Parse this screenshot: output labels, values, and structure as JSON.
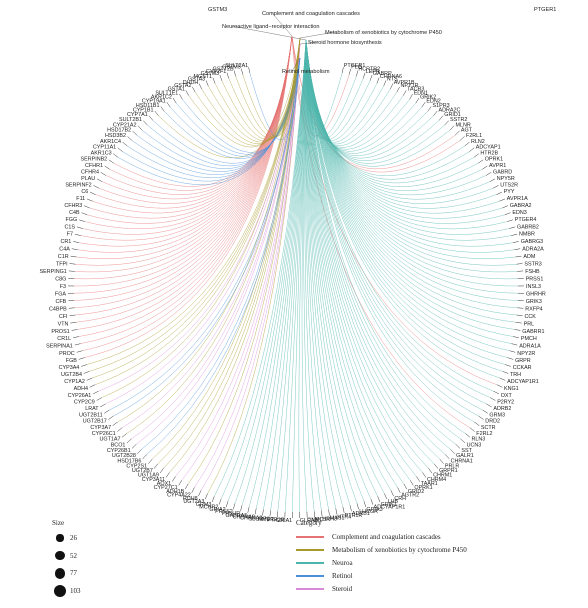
{
  "size_legend": {
    "title": "Size",
    "items": [
      {
        "label": "26",
        "value": 26
      },
      {
        "label": "52",
        "value": 52
      },
      {
        "label": "77",
        "value": 77
      },
      {
        "label": "103",
        "value": 103
      }
    ]
  },
  "category_legend": {
    "title": "Category",
    "items": [
      {
        "label": "Complement and coagulation cascades",
        "color": "#e57373"
      },
      {
        "label": "Metabolism of xenobiotics by cytochrome P450",
        "color": "#a89a2a"
      },
      {
        "label": "Neuroa",
        "color": "#4db6ac"
      },
      {
        "label": "Retinol",
        "color": "#4a90d9"
      },
      {
        "label": "Steroid",
        "color": "#d98ad9"
      }
    ]
  },
  "pathways": [
    {
      "label": "Complement and coagulation cascades",
      "color": "#e57373"
    },
    {
      "label": "Metabolism of xenobiotics by cytochrome P450",
      "color": "#a89a2a"
    },
    {
      "label": "Neuroactive ligand−receptor interaction",
      "color": "#4db6ac"
    },
    {
      "label": "Steroid hormone biosynthesis",
      "color": "#d98ad9"
    },
    {
      "label": "Retinol metabolism",
      "color": "#4a90d9"
    }
  ],
  "genes": [
    {
      "name": "PTGER1",
      "cat": 2
    },
    {
      "name": "PLG",
      "cat": 0
    },
    {
      "name": "HCRTR2",
      "cat": 2
    },
    {
      "name": "LEPR",
      "cat": 2
    },
    {
      "name": "GABRP",
      "cat": 2
    },
    {
      "name": "CHRNA6",
      "cat": 2
    },
    {
      "name": "NTS",
      "cat": 2
    },
    {
      "name": "AVPR1B",
      "cat": 2
    },
    {
      "name": "NPY1R",
      "cat": 2
    },
    {
      "name": "TACR3",
      "cat": 2
    },
    {
      "name": "EDN1",
      "cat": 2
    },
    {
      "name": "GRIK2",
      "cat": 2
    },
    {
      "name": "EDN2",
      "cat": 2
    },
    {
      "name": "S1PR3",
      "cat": 2
    },
    {
      "name": "ADRA2C",
      "cat": 2
    },
    {
      "name": "GRID1",
      "cat": 2
    },
    {
      "name": "SSTR2",
      "cat": 2
    },
    {
      "name": "MLNR",
      "cat": 2
    },
    {
      "name": "AGT",
      "cat": 0
    },
    {
      "name": "F2RL1",
      "cat": 0
    },
    {
      "name": "RLN2",
      "cat": 2
    },
    {
      "name": "ADCYAP1",
      "cat": 2
    },
    {
      "name": "HTR2B",
      "cat": 2
    },
    {
      "name": "OPRK1",
      "cat": 2
    },
    {
      "name": "AVPR1",
      "cat": 2
    },
    {
      "name": "GABRD",
      "cat": 2
    },
    {
      "name": "NPY5R",
      "cat": 2
    },
    {
      "name": "UTS2R",
      "cat": 2
    },
    {
      "name": "PYY",
      "cat": 2
    },
    {
      "name": "AVPR1A",
      "cat": 2
    },
    {
      "name": "GABRA2",
      "cat": 2
    },
    {
      "name": "EDN3",
      "cat": 2
    },
    {
      "name": "PTGER4",
      "cat": 2
    },
    {
      "name": "GABRB2",
      "cat": 2
    },
    {
      "name": "NMBR",
      "cat": 2
    },
    {
      "name": "GABRG3",
      "cat": 2
    },
    {
      "name": "ADRA2A",
      "cat": 2
    },
    {
      "name": "ADM",
      "cat": 2
    },
    {
      "name": "SSTR3",
      "cat": 2
    },
    {
      "name": "FSHB",
      "cat": 2
    },
    {
      "name": "PRSS1",
      "cat": 2
    },
    {
      "name": "INSL3",
      "cat": 2
    },
    {
      "name": "GHRHR",
      "cat": 2
    },
    {
      "name": "GRIK3",
      "cat": 2
    },
    {
      "name": "RXFP4",
      "cat": 2
    },
    {
      "name": "CCK",
      "cat": 2
    },
    {
      "name": "PRL",
      "cat": 2
    },
    {
      "name": "GABRR1",
      "cat": 2
    },
    {
      "name": "PMCH",
      "cat": 2
    },
    {
      "name": "ADRA1A",
      "cat": 2
    },
    {
      "name": "NPY2R",
      "cat": 2
    },
    {
      "name": "GRPR",
      "cat": 2
    },
    {
      "name": "CCKAR",
      "cat": 2
    },
    {
      "name": "TRH",
      "cat": 2
    },
    {
      "name": "ADCYAP1R1",
      "cat": 2
    },
    {
      "name": "KNG1",
      "cat": 0
    },
    {
      "name": "OXT",
      "cat": 2
    },
    {
      "name": "P2RY2",
      "cat": 2
    },
    {
      "name": "ADRB2",
      "cat": 2
    },
    {
      "name": "GRM3",
      "cat": 2
    },
    {
      "name": "DRD2",
      "cat": 2
    },
    {
      "name": "SCTR",
      "cat": 2
    },
    {
      "name": "F2RL2",
      "cat": 0
    },
    {
      "name": "RLN3",
      "cat": 2
    },
    {
      "name": "UCN3",
      "cat": 2
    },
    {
      "name": "SST",
      "cat": 2
    },
    {
      "name": "GALR1",
      "cat": 2
    },
    {
      "name": "CHRNA1",
      "cat": 2
    },
    {
      "name": "PRLR",
      "cat": 2
    },
    {
      "name": "GRPR1",
      "cat": 2
    },
    {
      "name": "CHRM1",
      "cat": 2
    },
    {
      "name": "CHRM4",
      "cat": 2
    },
    {
      "name": "TAAR1",
      "cat": 2
    },
    {
      "name": "OPRK1",
      "cat": 2
    },
    {
      "name": "GRID2",
      "cat": 2
    },
    {
      "name": "AGTR2",
      "cat": 2
    },
    {
      "name": "CRH",
      "cat": 2
    },
    {
      "name": "LHB",
      "cat": 2
    },
    {
      "name": "GRIK1",
      "cat": 2
    },
    {
      "name": "ADCYAP1R1",
      "cat": 2
    },
    {
      "name": "GRIA3",
      "cat": 2
    },
    {
      "name": "LHCGR",
      "cat": 2
    },
    {
      "name": "ADRB1",
      "cat": 2
    },
    {
      "name": "PTH1R",
      "cat": 2
    },
    {
      "name": "HTR4",
      "cat": 2
    },
    {
      "name": "MAS1",
      "cat": 2
    },
    {
      "name": "HRH3",
      "cat": 2
    },
    {
      "name": "MC3R",
      "cat": 2
    },
    {
      "name": "CNR1",
      "cat": 2
    },
    {
      "name": "GLRA3",
      "cat": 2
    },
    {
      "name": "GRIA1",
      "cat": 2
    },
    {
      "name": "PTH2R",
      "cat": 2
    },
    {
      "name": "NMUR2",
      "cat": 2
    },
    {
      "name": "SLURP1",
      "cat": 2
    },
    {
      "name": "CHRNA3",
      "cat": 2
    },
    {
      "name": "CHRNA9",
      "cat": 2
    },
    {
      "name": "GABRA5",
      "cat": 2
    },
    {
      "name": "PRLHR",
      "cat": 2
    },
    {
      "name": "PRSS2",
      "cat": 2
    },
    {
      "name": "GRIA2",
      "cat": 2
    },
    {
      "name": "MCHR2",
      "cat": 2
    },
    {
      "name": "GRM3",
      "cat": 2
    },
    {
      "name": "UGT2A3",
      "cat": 1
    },
    {
      "name": "RDH8",
      "cat": 4
    },
    {
      "name": "CYP4A22",
      "cat": 4
    },
    {
      "name": "ADH1B",
      "cat": 1
    },
    {
      "name": "CYP27C1",
      "cat": 4
    },
    {
      "name": "AOX1",
      "cat": 4
    },
    {
      "name": "CYP3A11",
      "cat": 1
    },
    {
      "name": "UGT1A9",
      "cat": 1
    },
    {
      "name": "UGT2B7",
      "cat": 1
    },
    {
      "name": "CYP2S1",
      "cat": 1
    },
    {
      "name": "HSD17B6",
      "cat": 3
    },
    {
      "name": "UGT2B28",
      "cat": 3
    },
    {
      "name": "CYP26B1",
      "cat": 4
    },
    {
      "name": "BCO1",
      "cat": 4
    },
    {
      "name": "UGT1A7",
      "cat": 1
    },
    {
      "name": "CYP26C1",
      "cat": 4
    },
    {
      "name": "CYP3A7",
      "cat": 1
    },
    {
      "name": "UGT2B17",
      "cat": 3
    },
    {
      "name": "UGT2B11",
      "cat": 3
    },
    {
      "name": "LRAT",
      "cat": 4
    },
    {
      "name": "CYP2C9",
      "cat": 1
    },
    {
      "name": "CYP26A1",
      "cat": 4
    },
    {
      "name": "ADH4",
      "cat": 1
    },
    {
      "name": "CYP1A2",
      "cat": 1
    },
    {
      "name": "UGT2B4",
      "cat": 1
    },
    {
      "name": "CYP3A4",
      "cat": 1
    },
    {
      "name": "FGB",
      "cat": 0
    },
    {
      "name": "PROC",
      "cat": 0
    },
    {
      "name": "SERPINA1",
      "cat": 0
    },
    {
      "name": "CR1L",
      "cat": 0
    },
    {
      "name": "PROS1",
      "cat": 0
    },
    {
      "name": "VTN",
      "cat": 0
    },
    {
      "name": "CFI",
      "cat": 0
    },
    {
      "name": "C4BPB",
      "cat": 0
    },
    {
      "name": "CFB",
      "cat": 0
    },
    {
      "name": "FGA",
      "cat": 0
    },
    {
      "name": "F3",
      "cat": 0
    },
    {
      "name": "C8G",
      "cat": 0
    },
    {
      "name": "SERPING1",
      "cat": 0
    },
    {
      "name": "TFPI",
      "cat": 0
    },
    {
      "name": "C1R",
      "cat": 0
    },
    {
      "name": "C4A",
      "cat": 0
    },
    {
      "name": "CR1",
      "cat": 0
    },
    {
      "name": "F7",
      "cat": 0
    },
    {
      "name": "C1S",
      "cat": 0
    },
    {
      "name": "FGG",
      "cat": 0
    },
    {
      "name": "C4B",
      "cat": 0
    },
    {
      "name": "CFHR3",
      "cat": 0
    },
    {
      "name": "F11",
      "cat": 0
    },
    {
      "name": "C6",
      "cat": 0
    },
    {
      "name": "SERPINF2",
      "cat": 0
    },
    {
      "name": "PLAU",
      "cat": 0
    },
    {
      "name": "CFHR4",
      "cat": 0
    },
    {
      "name": "CFHR1",
      "cat": 0
    },
    {
      "name": "SERPINB2",
      "cat": 0
    },
    {
      "name": "AKR1C3",
      "cat": 3
    },
    {
      "name": "CYP11A1",
      "cat": 3
    },
    {
      "name": "AKR1C4",
      "cat": 3
    },
    {
      "name": "HSD3B2",
      "cat": 3
    },
    {
      "name": "HSD17B2",
      "cat": 3
    },
    {
      "name": "CYP21A2",
      "cat": 3
    },
    {
      "name": "SULT2B1",
      "cat": 3
    },
    {
      "name": "CYP7A1",
      "cat": 3
    },
    {
      "name": "CYP1B1",
      "cat": 1
    },
    {
      "name": "HSD11B1",
      "cat": 3
    },
    {
      "name": "CYP19A1",
      "cat": 3
    },
    {
      "name": "AKR1C2",
      "cat": 3
    },
    {
      "name": "SULT1E1",
      "cat": 3
    },
    {
      "name": "GSTA1",
      "cat": 1
    },
    {
      "name": "GSTA2",
      "cat": 1
    },
    {
      "name": "DHDH",
      "cat": 1
    },
    {
      "name": "GSTA3",
      "cat": 1
    },
    {
      "name": "MGST1",
      "cat": 1
    },
    {
      "name": "GSTM3",
      "cat": 1
    },
    {
      "name": "CYP2F1",
      "cat": 1
    },
    {
      "name": "GSTT2B",
      "cat": 1
    },
    {
      "name": "GSTM5",
      "cat": 1
    },
    {
      "name": "SULT2A1",
      "cat": 3
    }
  ]
}
